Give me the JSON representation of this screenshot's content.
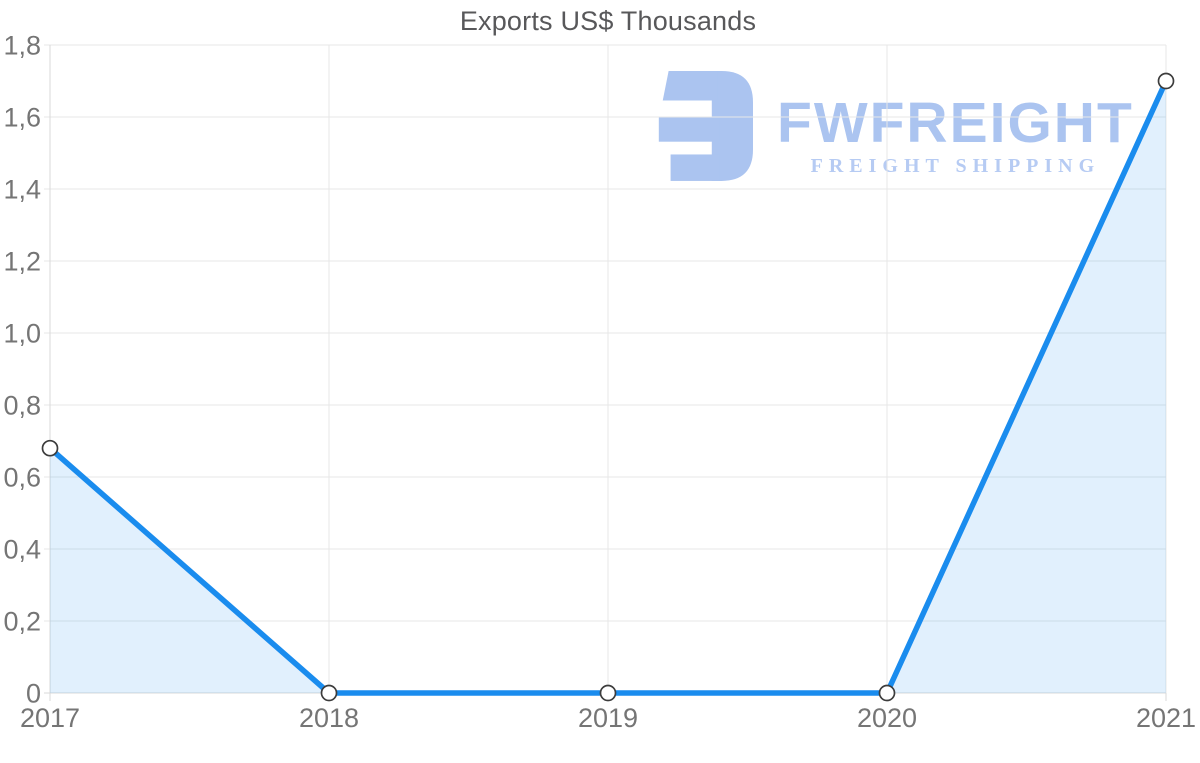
{
  "header": {
    "title": "Exports US$ Thousands"
  },
  "watermark": {
    "brand": "FWFREIGHT",
    "tagline": "FREIGHT SHIPPING",
    "logo_icon": "freight-f-mark-icon"
  },
  "colors": {
    "background": "#ffffff",
    "line": "#1a8cee",
    "area_fill": "rgba(26,140,238,0.13)",
    "grid": "#e7e7e7",
    "axis": "#d9d9d9",
    "marker_fill": "#ffffff",
    "marker_stroke": "#3c3c3c",
    "title_text": "#58585a",
    "tick_text": "#757575",
    "logo": "#abc4f0",
    "logo_tagline": "#b6cbf3"
  },
  "chart_data": {
    "type": "area",
    "title": "Exports US$ Thousands",
    "xlabel": "",
    "ylabel": "",
    "x_labels": [
      "2017",
      "2018",
      "2019",
      "2020",
      "2021"
    ],
    "x": [
      2017,
      2018,
      2019,
      2020,
      2021
    ],
    "values": [
      0.68,
      0,
      0,
      0,
      1.7
    ],
    "ylim": [
      0,
      1.8
    ],
    "ytick_step": 0.2,
    "ytick_labels": [
      "0",
      "0,2",
      "0,4",
      "0,6",
      "0,8",
      "1,0",
      "1,2",
      "1,4",
      "1,6",
      "1,8"
    ],
    "decimal_separator": ",",
    "grid": true,
    "legend": "none",
    "markers": "circle"
  }
}
